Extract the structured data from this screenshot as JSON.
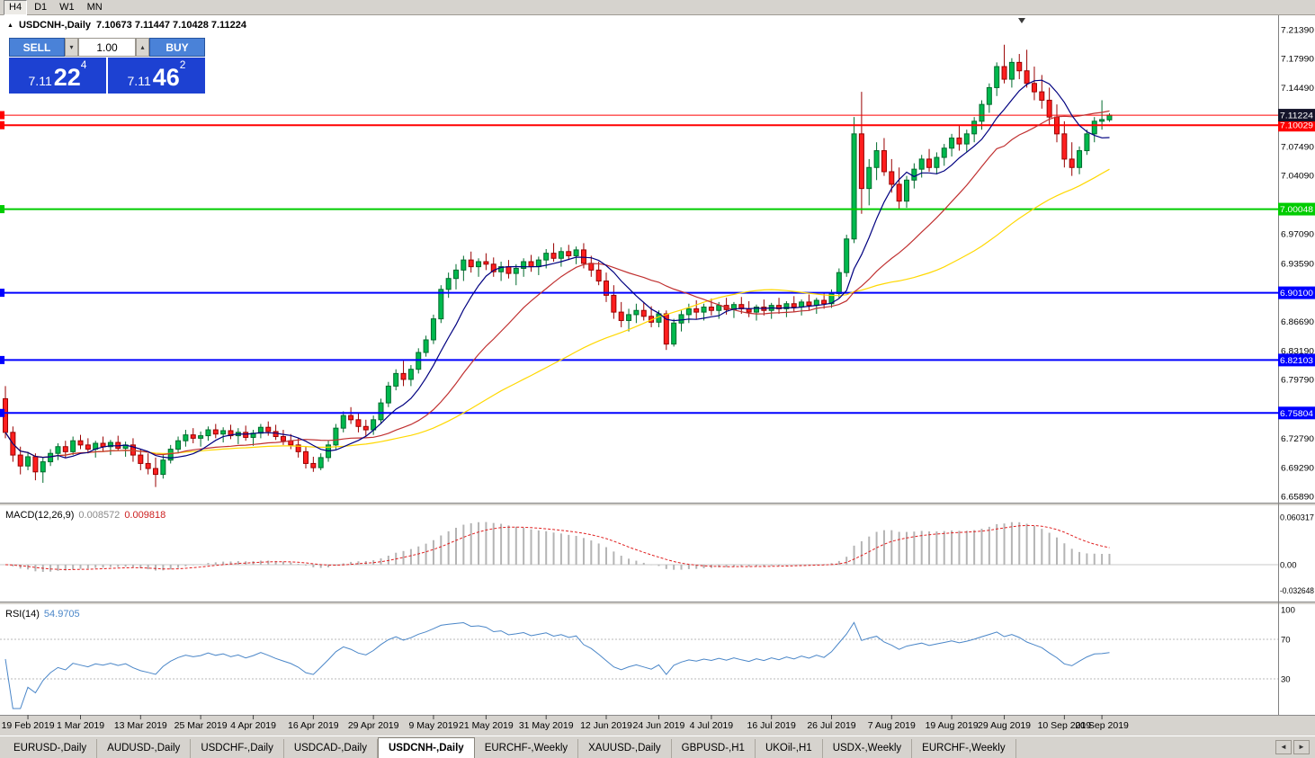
{
  "toolbar": {
    "buttons": [
      "H4",
      "D1",
      "W1",
      "MN"
    ],
    "active": "H4"
  },
  "header": {
    "marker_icon": "▲",
    "symbol": "USDCNH-,Daily",
    "ohlc": "7.10673 7.11447 7.10428 7.11224"
  },
  "trade_panel": {
    "sell_label": "SELL",
    "buy_label": "BUY",
    "volume": "1.00",
    "volume_down_icon": "▾",
    "volume_up_icon": "▴",
    "sell_price": {
      "small": "7.11",
      "big": "22",
      "sup": "4"
    },
    "buy_price": {
      "small": "7.11",
      "big": "46",
      "sup": "2"
    }
  },
  "chart_data": {
    "type": "candlestick",
    "symbol": "USDCNH-,Daily",
    "ylim": [
      6.6589,
      7.2139
    ],
    "colors": {
      "up": "#00b94e",
      "up_border": "#006b2d",
      "down": "#ff1f1f",
      "down_border": "#990000",
      "background": "#ffffff"
    },
    "candles": [
      [
        6.775,
        6.79,
        6.728,
        6.735
      ],
      [
        6.735,
        6.742,
        6.7,
        6.708
      ],
      [
        6.708,
        6.718,
        6.685,
        6.695
      ],
      [
        6.695,
        6.712,
        6.69,
        6.706
      ],
      [
        6.706,
        6.71,
        6.678,
        6.688
      ],
      [
        6.688,
        6.705,
        6.675,
        6.7
      ],
      [
        6.7,
        6.715,
        6.695,
        6.71
      ],
      [
        6.71,
        6.722,
        6.702,
        6.718
      ],
      [
        6.718,
        6.725,
        6.705,
        6.712
      ],
      [
        6.712,
        6.73,
        6.708,
        6.725
      ],
      [
        6.725,
        6.732,
        6.715,
        6.72
      ],
      [
        6.72,
        6.728,
        6.71,
        6.715
      ],
      [
        6.715,
        6.725,
        6.705,
        6.722
      ],
      [
        6.722,
        6.73,
        6.712,
        6.718
      ],
      [
        6.718,
        6.726,
        6.708,
        6.723
      ],
      [
        6.723,
        6.731,
        6.713,
        6.716
      ],
      [
        6.716,
        6.724,
        6.706,
        6.72
      ],
      [
        6.72,
        6.728,
        6.7,
        6.708
      ],
      [
        6.708,
        6.715,
        6.69,
        6.698
      ],
      [
        6.698,
        6.71,
        6.685,
        6.692
      ],
      [
        6.692,
        6.705,
        6.67,
        6.685
      ],
      [
        6.685,
        6.708,
        6.68,
        6.702
      ],
      [
        6.702,
        6.72,
        6.698,
        6.715
      ],
      [
        6.715,
        6.73,
        6.71,
        6.725
      ],
      [
        6.725,
        6.738,
        6.718,
        6.732
      ],
      [
        6.732,
        6.74,
        6.722,
        6.728
      ],
      [
        6.728,
        6.736,
        6.718,
        6.731
      ],
      [
        6.731,
        6.742,
        6.725,
        6.738
      ],
      [
        6.738,
        6.745,
        6.728,
        6.733
      ],
      [
        6.733,
        6.741,
        6.723,
        6.737
      ],
      [
        6.737,
        6.744,
        6.727,
        6.731
      ],
      [
        6.731,
        6.74,
        6.721,
        6.735
      ],
      [
        6.735,
        6.743,
        6.725,
        6.729
      ],
      [
        6.729,
        6.738,
        6.719,
        6.734
      ],
      [
        6.734,
        6.745,
        6.728,
        6.741
      ],
      [
        6.741,
        6.748,
        6.731,
        6.736
      ],
      [
        6.736,
        6.744,
        6.726,
        6.73
      ],
      [
        6.73,
        6.738,
        6.72,
        6.725
      ],
      [
        6.725,
        6.733,
        6.715,
        6.72
      ],
      [
        6.72,
        6.728,
        6.705,
        6.712
      ],
      [
        6.712,
        6.718,
        6.692,
        6.698
      ],
      [
        6.698,
        6.706,
        6.688,
        6.693
      ],
      [
        6.693,
        6.71,
        6.69,
        6.705
      ],
      [
        6.705,
        6.725,
        6.7,
        6.72
      ],
      [
        6.72,
        6.745,
        6.715,
        6.74
      ],
      [
        6.74,
        6.76,
        6.735,
        6.755
      ],
      [
        6.755,
        6.765,
        6.745,
        6.75
      ],
      [
        6.75,
        6.758,
        6.735,
        6.742
      ],
      [
        6.742,
        6.75,
        6.73,
        6.738
      ],
      [
        6.738,
        6.755,
        6.732,
        6.75
      ],
      [
        6.75,
        6.775,
        6.745,
        6.77
      ],
      [
        6.77,
        6.795,
        6.765,
        6.79
      ],
      [
        6.79,
        6.81,
        6.785,
        6.805
      ],
      [
        6.805,
        6.82,
        6.79,
        6.798
      ],
      [
        6.798,
        6.815,
        6.79,
        6.81
      ],
      [
        6.81,
        6.835,
        6.805,
        6.83
      ],
      [
        6.83,
        6.85,
        6.825,
        6.845
      ],
      [
        6.845,
        6.875,
        6.84,
        6.87
      ],
      [
        6.87,
        6.91,
        6.865,
        6.905
      ],
      [
        6.905,
        6.925,
        6.895,
        6.918
      ],
      [
        6.918,
        6.935,
        6.905,
        6.928
      ],
      [
        6.928,
        6.945,
        6.915,
        6.94
      ],
      [
        6.94,
        6.95,
        6.925,
        6.932
      ],
      [
        6.932,
        6.942,
        6.92,
        6.938
      ],
      [
        6.938,
        6.948,
        6.928,
        6.935
      ],
      [
        6.935,
        6.943,
        6.92,
        6.926
      ],
      [
        6.926,
        6.938,
        6.915,
        6.932
      ],
      [
        6.932,
        6.94,
        6.918,
        6.924
      ],
      [
        6.924,
        6.935,
        6.91,
        6.93
      ],
      [
        6.93,
        6.942,
        6.92,
        6.938
      ],
      [
        6.938,
        6.946,
        6.926,
        6.932
      ],
      [
        6.932,
        6.944,
        6.922,
        6.94
      ],
      [
        6.94,
        6.953,
        6.93,
        6.948
      ],
      [
        6.948,
        6.96,
        6.938,
        6.942
      ],
      [
        6.942,
        6.955,
        6.932,
        6.95
      ],
      [
        6.95,
        6.958,
        6.94,
        6.945
      ],
      [
        6.945,
        6.956,
        6.935,
        6.952
      ],
      [
        6.952,
        6.96,
        6.93,
        6.936
      ],
      [
        6.936,
        6.945,
        6.92,
        6.928
      ],
      [
        6.928,
        6.938,
        6.91,
        6.915
      ],
      [
        6.915,
        6.925,
        6.89,
        6.898
      ],
      [
        6.898,
        6.91,
        6.87,
        6.878
      ],
      [
        6.878,
        6.89,
        6.86,
        6.868
      ],
      [
        6.868,
        6.882,
        6.855,
        6.875
      ],
      [
        6.875,
        6.888,
        6.865,
        6.88
      ],
      [
        6.88,
        6.89,
        6.868,
        6.873
      ],
      [
        6.873,
        6.885,
        6.86,
        6.866
      ],
      [
        6.866,
        6.88,
        6.86,
        6.876
      ],
      [
        6.876,
        6.88,
        6.833,
        6.84
      ],
      [
        6.84,
        6.87,
        6.837,
        6.865
      ],
      [
        6.865,
        6.88,
        6.855,
        6.875
      ],
      [
        6.875,
        6.888,
        6.865,
        6.882
      ],
      [
        6.882,
        6.892,
        6.87,
        6.878
      ],
      [
        6.878,
        6.888,
        6.868,
        6.884
      ],
      [
        6.884,
        6.894,
        6.874,
        6.88
      ],
      [
        6.88,
        6.89,
        6.87,
        6.886
      ],
      [
        6.886,
        6.895,
        6.875,
        6.881
      ],
      [
        6.881,
        6.89,
        6.871,
        6.887
      ],
      [
        6.887,
        6.896,
        6.876,
        6.882
      ],
      [
        6.882,
        6.891,
        6.872,
        6.878
      ],
      [
        6.878,
        6.887,
        6.868,
        6.884
      ],
      [
        6.884,
        6.893,
        6.874,
        6.88
      ],
      [
        6.88,
        6.889,
        6.87,
        6.886
      ],
      [
        6.886,
        6.895,
        6.876,
        6.882
      ],
      [
        6.882,
        6.891,
        6.872,
        6.888
      ],
      [
        6.888,
        6.897,
        6.878,
        6.884
      ],
      [
        6.884,
        6.893,
        6.874,
        6.89
      ],
      [
        6.89,
        6.899,
        6.88,
        6.886
      ],
      [
        6.886,
        6.895,
        6.876,
        6.892
      ],
      [
        6.892,
        6.901,
        6.882,
        6.888
      ],
      [
        6.888,
        6.905,
        6.883,
        6.9
      ],
      [
        6.9,
        6.93,
        6.895,
        6.925
      ],
      [
        6.925,
        6.97,
        6.92,
        6.965
      ],
      [
        6.965,
        7.11,
        6.96,
        7.09
      ],
      [
        7.09,
        7.14,
        6.995,
        7.025
      ],
      [
        7.025,
        7.06,
        7.005,
        7.05
      ],
      [
        7.05,
        7.08,
        7.035,
        7.07
      ],
      [
        7.07,
        7.085,
        7.04,
        7.045
      ],
      [
        7.045,
        7.06,
        7.02,
        7.03
      ],
      [
        7.03,
        7.05,
        7.0,
        7.01
      ],
      [
        7.01,
        7.04,
        7.002,
        7.035
      ],
      [
        7.035,
        7.055,
        7.025,
        7.048
      ],
      [
        7.048,
        7.065,
        7.038,
        7.06
      ],
      [
        7.06,
        7.072,
        7.045,
        7.05
      ],
      [
        7.05,
        7.068,
        7.042,
        7.062
      ],
      [
        7.062,
        7.078,
        7.052,
        7.073
      ],
      [
        7.073,
        7.09,
        7.063,
        7.085
      ],
      [
        7.085,
        7.1,
        7.07,
        7.078
      ],
      [
        7.078,
        7.095,
        7.068,
        7.09
      ],
      [
        7.09,
        7.11,
        7.08,
        7.105
      ],
      [
        7.105,
        7.13,
        7.095,
        7.125
      ],
      [
        7.125,
        7.15,
        7.115,
        7.145
      ],
      [
        7.145,
        7.175,
        7.135,
        7.17
      ],
      [
        7.17,
        7.196,
        7.15,
        7.155
      ],
      [
        7.155,
        7.18,
        7.145,
        7.175
      ],
      [
        7.175,
        7.185,
        7.155,
        7.165
      ],
      [
        7.165,
        7.19,
        7.145,
        7.15
      ],
      [
        7.15,
        7.17,
        7.13,
        7.14
      ],
      [
        7.14,
        7.16,
        7.12,
        7.13
      ],
      [
        7.13,
        7.145,
        7.1,
        7.11
      ],
      [
        7.11,
        7.125,
        7.08,
        7.09
      ],
      [
        7.09,
        7.105,
        7.05,
        7.06
      ],
      [
        7.06,
        7.08,
        7.04,
        7.05
      ],
      [
        7.05,
        7.075,
        7.042,
        7.07
      ],
      [
        7.07,
        7.095,
        7.065,
        7.09
      ],
      [
        7.09,
        7.11,
        7.08,
        7.105
      ],
      [
        7.105,
        7.13,
        7.095,
        7.107
      ],
      [
        7.1067,
        7.1145,
        7.1043,
        7.1122
      ]
    ],
    "moving_averages": [
      {
        "period": 45,
        "color": "#ffd800"
      },
      {
        "period": 20,
        "color": "#c03030"
      },
      {
        "period": 8,
        "color": "#000080"
      }
    ],
    "hlines": [
      {
        "price": 7.10029,
        "color": "#ff0000",
        "width": 2,
        "tag_bg": "#ff0000",
        "tag_text": "#ffffff"
      },
      {
        "price": 7.11224,
        "color": "#ff0000",
        "width": 1,
        "tag_bg": "#14142a",
        "tag_text": "#ffffff"
      },
      {
        "price": 7.00048,
        "color": "#00cc00",
        "width": 2,
        "tag_bg": "#00cc00",
        "tag_text": "#ffffff"
      },
      {
        "price": 6.901,
        "color": "#0000ff",
        "width": 2,
        "tag_bg": "#0000ff",
        "tag_text": "#ffffff"
      },
      {
        "price": 6.82103,
        "color": "#0000ff",
        "width": 2,
        "tag_bg": "#0000ff",
        "tag_text": "#ffffff"
      },
      {
        "price": 6.75804,
        "color": "#0000ff",
        "width": 2,
        "tag_bg": "#0000ff",
        "tag_text": "#ffffff"
      }
    ],
    "price_axis_labels": [
      7.2139,
      7.1799,
      7.1449,
      7.0749,
      7.0409,
      6.9709,
      6.9359,
      6.8669,
      6.8319,
      6.7979,
      6.7279,
      6.6929,
      6.6589
    ],
    "date_ticks": [
      {
        "i": 3,
        "label": "19 Feb 2019"
      },
      {
        "i": 10,
        "label": "1 Mar 2019"
      },
      {
        "i": 18,
        "label": "13 Mar 2019"
      },
      {
        "i": 26,
        "label": "25 Mar 2019"
      },
      {
        "i": 33,
        "label": "4 Apr 2019"
      },
      {
        "i": 41,
        "label": "16 Apr 2019"
      },
      {
        "i": 49,
        "label": "29 Apr 2019"
      },
      {
        "i": 57,
        "label": "9 May 2019"
      },
      {
        "i": 64,
        "label": "21 May 2019"
      },
      {
        "i": 72,
        "label": "31 May 2019"
      },
      {
        "i": 80,
        "label": "12 Jun 2019"
      },
      {
        "i": 87,
        "label": "24 Jun 2019"
      },
      {
        "i": 94,
        "label": "4 Jul 2019"
      },
      {
        "i": 102,
        "label": "16 Jul 2019"
      },
      {
        "i": 110,
        "label": "26 Jul 2019"
      },
      {
        "i": 118,
        "label": "7 Aug 2019"
      },
      {
        "i": 126,
        "label": "19 Aug 2019"
      },
      {
        "i": 133,
        "label": "29 Aug 2019"
      },
      {
        "i": 141,
        "label": "10 Sep 2019"
      },
      {
        "i": 146,
        "label": "20 Sep 2019"
      }
    ],
    "macd": {
      "period_text": "MACD(12,26,9)",
      "value_main": "0.008572",
      "value_signal": "0.009818",
      "fast": 12,
      "slow": 26,
      "signal": 9,
      "histogram_color": "#b4b4b4",
      "signal_color": "#e02020",
      "axis_labels": [
        {
          "v": 0.060317,
          "t": "0.060317"
        },
        {
          "v": 0,
          "t": "0.00"
        },
        {
          "v": -0.032648,
          "t": "-0.032648"
        }
      ]
    },
    "rsi": {
      "period_text": "RSI(14)",
      "value": "54.9705",
      "period": 14,
      "line_color": "#4a86c8",
      "levels": [
        70,
        30
      ],
      "axis_labels": [
        {
          "v": 100,
          "t": "100"
        },
        {
          "v": 70,
          "t": "70"
        },
        {
          "v": 30,
          "t": "30"
        }
      ]
    }
  },
  "tabs": {
    "items": [
      "EURUSD-,Daily",
      "AUDUSD-,Daily",
      "USDCHF-,Daily",
      "USDCAD-,Daily",
      "USDCNH-,Daily",
      "EURCHF-,Weekly",
      "XAUUSD-,Daily",
      "GBPUSD-,H1",
      "UKOil-,H1",
      "USDX-,Weekly",
      "EURCHF-,Weekly"
    ],
    "active_index": 4,
    "scroll_left_icon": "◄",
    "scroll_right_icon": "►"
  }
}
